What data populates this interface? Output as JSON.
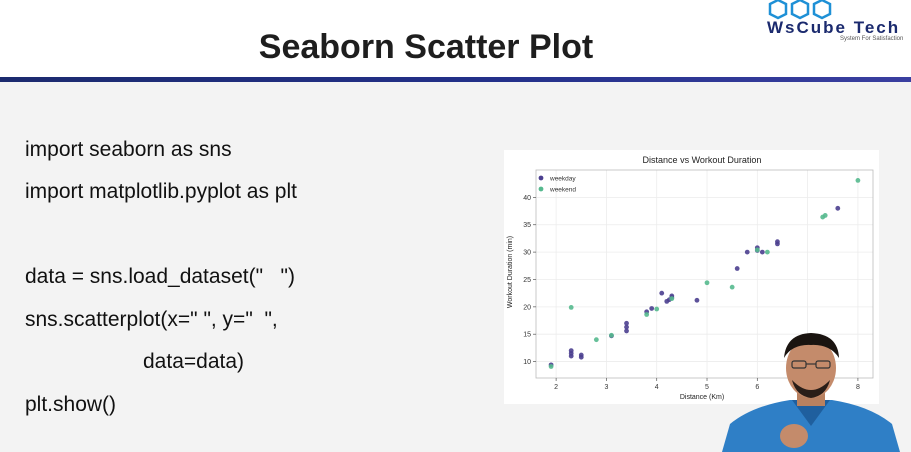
{
  "header": {
    "title": "Seaborn Scatter Plot",
    "logo_text": "WsCube Tech",
    "logo_tagline": "System For Satisfaction"
  },
  "code_lines": [
    "import seaborn as sns",
    "import matplotlib.pyplot as plt",
    "data = sns.load_dataset(\"   \")",
    "sns.scatterplot(x=\" \", y=\"  \",",
    "data=data)",
    "plt.show()"
  ],
  "colors": {
    "header_bar": "#1b2a6e",
    "weekday": "#4b3f8f",
    "weekend": "#55b98e"
  },
  "chart_data": {
    "type": "scatter",
    "title": "Distance vs Workout Duration",
    "xlabel": "Distance (Km)",
    "ylabel": "Workout Duration (min)",
    "xlim": [
      1.6,
      8.3
    ],
    "ylim": [
      7,
      45
    ],
    "xticks": [
      2,
      3,
      4,
      5,
      6,
      7,
      8
    ],
    "yticks": [
      10,
      15,
      20,
      25,
      30,
      35,
      40
    ],
    "grid": true,
    "legend_position": "top-left",
    "series": [
      {
        "name": "weekday",
        "color": "#4b3f8f",
        "points": [
          [
            1.9,
            9.4
          ],
          [
            2.3,
            11.0
          ],
          [
            2.3,
            11.5
          ],
          [
            2.3,
            12.0
          ],
          [
            2.5,
            10.8
          ],
          [
            2.5,
            11.2
          ],
          [
            3.1,
            14.7
          ],
          [
            3.4,
            15.6
          ],
          [
            3.4,
            16.3
          ],
          [
            3.4,
            17.0
          ],
          [
            3.8,
            19.1
          ],
          [
            3.9,
            19.7
          ],
          [
            4.1,
            22.5
          ],
          [
            4.2,
            21.0
          ],
          [
            4.25,
            21.3
          ],
          [
            4.3,
            21.7
          ],
          [
            4.3,
            22.0
          ],
          [
            4.8,
            21.2
          ],
          [
            5.6,
            27.0
          ],
          [
            5.8,
            30.0
          ],
          [
            6.0,
            30.3
          ],
          [
            6.0,
            30.8
          ],
          [
            6.1,
            30.0
          ],
          [
            6.4,
            31.5
          ],
          [
            6.4,
            31.9
          ],
          [
            7.6,
            38.0
          ]
        ]
      },
      {
        "name": "weekend",
        "color": "#55b98e",
        "points": [
          [
            1.9,
            9.1
          ],
          [
            2.3,
            19.9
          ],
          [
            2.8,
            14.0
          ],
          [
            3.1,
            14.8
          ],
          [
            3.8,
            18.6
          ],
          [
            4.0,
            19.6
          ],
          [
            4.3,
            21.5
          ],
          [
            5.0,
            24.4
          ],
          [
            5.5,
            23.6
          ],
          [
            6.0,
            30.4
          ],
          [
            6.2,
            30.0
          ],
          [
            7.3,
            36.4
          ],
          [
            7.35,
            36.7
          ],
          [
            8.0,
            43.1
          ]
        ]
      }
    ]
  }
}
